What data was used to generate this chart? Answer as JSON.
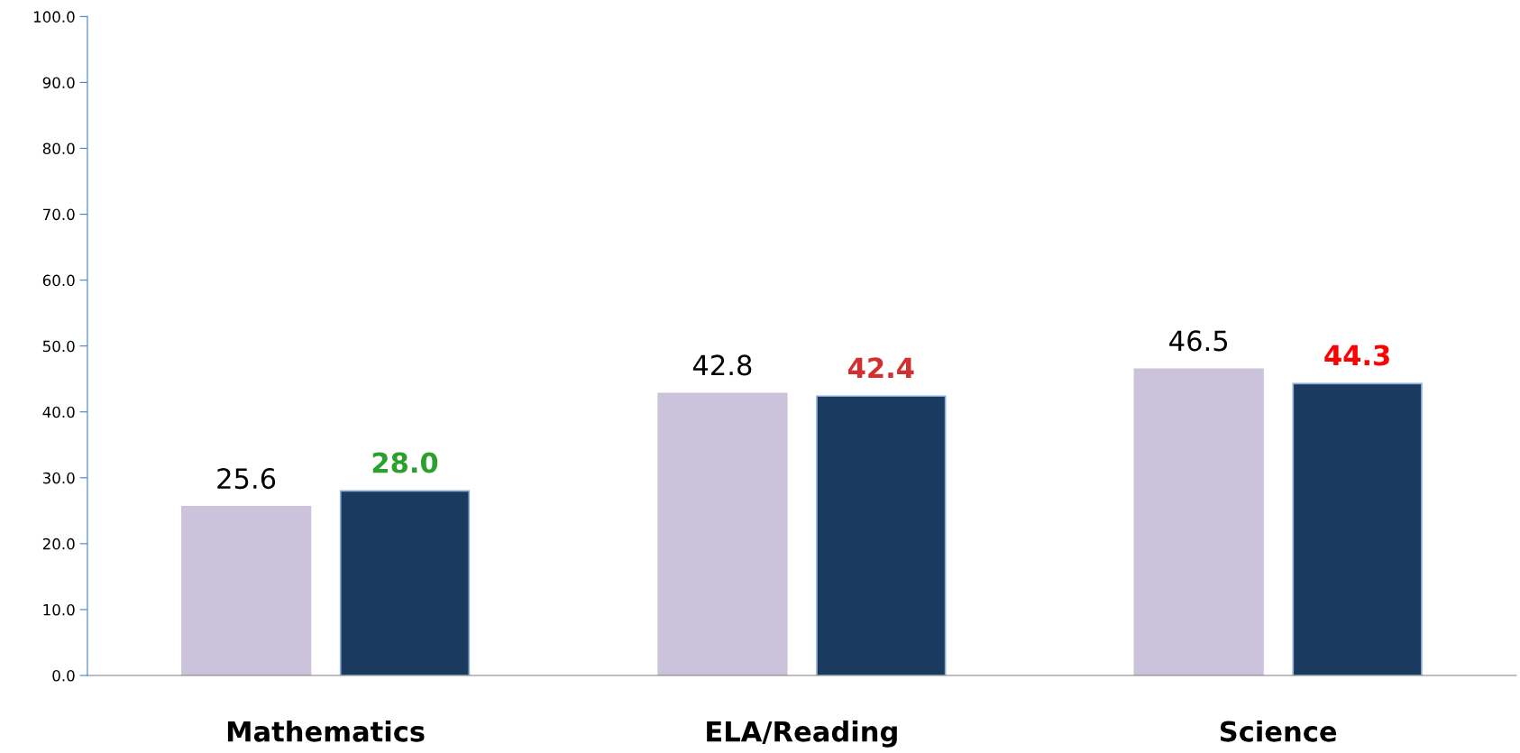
{
  "chart_data": {
    "type": "bar",
    "categories": [
      "Mathematics",
      "ELA/Reading",
      "Science"
    ],
    "series": [
      {
        "color": "#cbc3db",
        "values": [
          25.6,
          42.8,
          46.5
        ],
        "value_labels": [
          "25.6",
          "42.8",
          "46.5"
        ]
      },
      {
        "color": "#1a3a5f",
        "values": [
          28.0,
          42.4,
          44.3
        ],
        "value_labels": [
          "28.0",
          "42.4",
          "44.3"
        ]
      }
    ],
    "ylim": [
      0,
      100
    ],
    "yticks": [
      {
        "value": 0,
        "label": "0.0"
      },
      {
        "value": 10,
        "label": "10.0"
      },
      {
        "value": 20,
        "label": "20.0"
      },
      {
        "value": 30,
        "label": "30.0"
      },
      {
        "value": 40,
        "label": "40.0"
      },
      {
        "value": 50,
        "label": "50.0"
      },
      {
        "value": 60,
        "label": "60.0"
      },
      {
        "value": 70,
        "label": "70.0"
      },
      {
        "value": 80,
        "label": "80.0"
      },
      {
        "value": 90,
        "label": "90.0"
      },
      {
        "value": 100,
        "label": "100.0"
      }
    ],
    "grid": false,
    "legend": false
  }
}
